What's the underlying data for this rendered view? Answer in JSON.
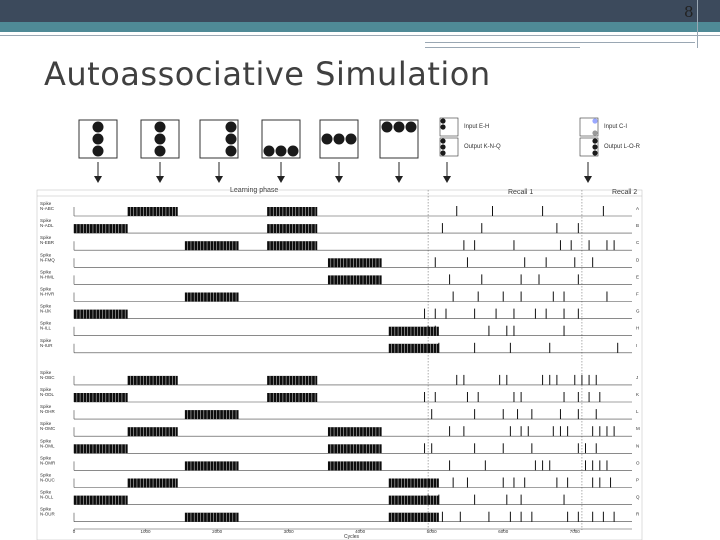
{
  "slide": {
    "page_number": "8",
    "title": "Autoassociative Simulation"
  },
  "figure": {
    "legend": {
      "input_eh": "Input E-H",
      "output_knq": "Output K-N-Q",
      "input_ci": "Input C-I",
      "output_lor": "Output L-O-R"
    },
    "phases": {
      "learning": "Learning phase",
      "recall1": "Recall 1",
      "recall2": "Recall 2"
    },
    "patterns": [
      {
        "dots": [
          [
            1,
            0
          ],
          [
            1,
            1
          ],
          [
            1,
            2
          ]
        ]
      },
      {
        "dots": [
          [
            1,
            0
          ],
          [
            1,
            1
          ],
          [
            1,
            2
          ]
        ]
      },
      {
        "dots": [
          [
            2,
            0
          ],
          [
            2,
            1
          ],
          [
            2,
            2
          ]
        ]
      },
      {
        "dots": [
          [
            0,
            2
          ],
          [
            1,
            2
          ],
          [
            2,
            2
          ]
        ]
      },
      {
        "dots": [
          [
            0,
            1
          ],
          [
            1,
            1
          ],
          [
            2,
            1
          ]
        ]
      },
      {
        "dots": [
          [
            0,
            0
          ],
          [
            1,
            0
          ],
          [
            2,
            0
          ]
        ]
      }
    ],
    "rows": [
      {
        "label": [
          "Spike",
          "N-ABC"
        ],
        "letter": "A",
        "bursts": [
          [
            750,
            1450
          ],
          [
            2700,
            3400
          ]
        ],
        "recall": [
          5350,
          5850,
          6550,
          7400
        ]
      },
      {
        "label": [
          "Spike",
          "N-ADL"
        ],
        "letter": "B",
        "bursts": [
          [
            0,
            750
          ],
          [
            2700,
            3400
          ]
        ],
        "recall": [
          5150,
          5700,
          6750,
          7050
        ]
      },
      {
        "label": [
          "Spike",
          "N-EBR"
        ],
        "letter": "C",
        "bursts": [
          [
            1550,
            2300
          ],
          [
            2700,
            3400
          ]
        ],
        "recall": [
          5450,
          5600,
          6150,
          6800,
          6950,
          7200,
          7450,
          7550
        ]
      },
      {
        "label": [
          "Spike",
          "N-FMQ"
        ],
        "letter": "D",
        "bursts": [
          [
            3550,
            4300
          ]
        ],
        "recall": [
          5050,
          5500,
          6300,
          6600,
          7000,
          7250
        ]
      },
      {
        "label": [
          "Spike",
          "N-HML"
        ],
        "letter": "E",
        "bursts": [
          [
            3550,
            4300
          ]
        ],
        "recall": [
          5250,
          5700,
          6250,
          6500,
          7050
        ]
      },
      {
        "label": [
          "Spike",
          "N-HVR"
        ],
        "letter": "F",
        "bursts": [
          [
            1550,
            2300
          ]
        ],
        "recall": [
          5300,
          5650,
          6000,
          6250,
          6700,
          6850,
          7450
        ]
      },
      {
        "label": [
          "Spike",
          "N-IJK"
        ],
        "letter": "G",
        "bursts": [
          [
            0,
            750
          ]
        ],
        "recall": [
          4900,
          5050,
          5200,
          5600,
          5900,
          6150,
          6450,
          6600,
          6850,
          7050
        ]
      },
      {
        "label": [
          "Spike",
          "N-ILL"
        ],
        "letter": "H",
        "bursts": [
          [
            4400,
            5100
          ]
        ],
        "recall": [
          4950,
          5050,
          5800,
          6050,
          6150,
          6850
        ]
      },
      {
        "label": [
          "Spike",
          "N-IUR"
        ],
        "letter": "I",
        "bursts": [
          [
            4400,
            5100
          ]
        ],
        "recall": [
          5100,
          5600,
          6100,
          6650,
          7600
        ]
      },
      {
        "label": [
          "Spike",
          "N-OBC"
        ],
        "letter": "J",
        "bursts": [
          [
            750,
            1450
          ],
          [
            2700,
            3400
          ]
        ],
        "recall": [
          5350,
          5450,
          5950,
          6050,
          6550,
          6650,
          6750,
          7000,
          7100,
          7200,
          7300
        ]
      },
      {
        "label": [
          "Spike",
          "N-ODL"
        ],
        "letter": "K",
        "bursts": [
          [
            0,
            750
          ],
          [
            2700,
            3400
          ]
        ],
        "recall": [
          4900,
          5050,
          5500,
          5650,
          6150,
          6250,
          6850,
          7050,
          7200,
          7350
        ]
      },
      {
        "label": [
          "Spike",
          "N-OHR"
        ],
        "letter": "L",
        "bursts": [
          [
            1550,
            2300
          ]
        ],
        "recall": [
          5000,
          5600,
          6000,
          6200,
          6400,
          6800,
          7050,
          7300
        ]
      },
      {
        "label": [
          "Spike",
          "N-OMC"
        ],
        "letter": "M",
        "bursts": [
          [
            750,
            1450
          ],
          [
            3550,
            4300
          ]
        ],
        "recall": [
          5250,
          5450,
          6100,
          6250,
          6350,
          6700,
          6800,
          6900,
          7250,
          7350,
          7450,
          7550
        ]
      },
      {
        "label": [
          "Spike",
          "N-OML"
        ],
        "letter": "N",
        "bursts": [
          [
            0,
            750
          ],
          [
            3550,
            4300
          ]
        ],
        "recall": [
          4900,
          5000,
          5600,
          6000,
          6400,
          7050,
          7150,
          7300
        ]
      },
      {
        "label": [
          "Spike",
          "N-OMR"
        ],
        "letter": "O",
        "bursts": [
          [
            1550,
            2300
          ],
          [
            3550,
            4300
          ]
        ],
        "recall": [
          5250,
          5750,
          6450,
          6550,
          6650,
          7150,
          7250,
          7350,
          7450
        ]
      },
      {
        "label": [
          "Spike",
          "N-OUC"
        ],
        "letter": "P",
        "bursts": [
          [
            750,
            1450
          ],
          [
            4400,
            5100
          ]
        ],
        "recall": [
          5300,
          5500,
          6000,
          6150,
          6300,
          6750,
          6900,
          7250,
          7350,
          7500
        ]
      },
      {
        "label": [
          "Spike",
          "N-OLL"
        ],
        "letter": "Q",
        "bursts": [
          [
            0,
            750
          ],
          [
            4400,
            5100
          ]
        ],
        "recall": [
          4950,
          5100,
          5600,
          6050,
          6250,
          6850
        ]
      },
      {
        "label": [
          "Spike",
          "N-OUR"
        ],
        "letter": "R",
        "bursts": [
          [
            1550,
            2300
          ],
          [
            4400,
            5100
          ]
        ],
        "recall": [
          5150,
          5400,
          5800,
          6100,
          6250,
          6400,
          6900,
          7050,
          7250,
          7400,
          7550
        ]
      }
    ],
    "x_axis": {
      "label": "Cycles",
      "ticks": [
        0,
        1000,
        2000,
        3000,
        4000,
        5000,
        6000,
        7000
      ],
      "tick_labels": [
        "0",
        "1000",
        "2000",
        "3000",
        "4000",
        "5000",
        "6000",
        "7000"
      ],
      "min": 0,
      "max": 7800
    },
    "recall1_start": 4950,
    "recall2_start": 7100
  }
}
